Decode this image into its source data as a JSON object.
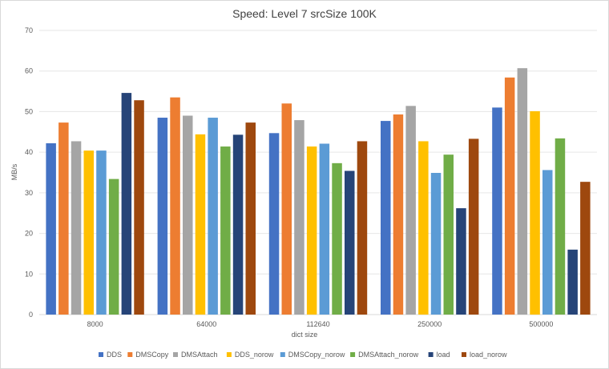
{
  "chart_data": {
    "type": "bar",
    "title": "Speed: Level 7 srcSize 100K",
    "xlabel": "dict size",
    "ylabel": "MB/s",
    "ylim": [
      0,
      70
    ],
    "yticks": [
      0,
      10,
      20,
      30,
      40,
      50,
      60,
      70
    ],
    "grid": true,
    "legend_position": "bottom",
    "categories": [
      "8000",
      "64000",
      "112640",
      "250000",
      "500000"
    ],
    "series": [
      {
        "name": "DDS",
        "color": "#4472c4",
        "values": [
          42.2,
          48.5,
          44.7,
          47.7,
          51.0
        ]
      },
      {
        "name": "DMSCopy",
        "color": "#ed7d31",
        "values": [
          47.3,
          53.5,
          52.0,
          49.3,
          58.4
        ]
      },
      {
        "name": "DMSAttach",
        "color": "#a5a5a5",
        "values": [
          42.7,
          49.0,
          47.9,
          51.4,
          60.7
        ]
      },
      {
        "name": "DDS_norow",
        "color": "#ffc000",
        "values": [
          40.4,
          44.4,
          41.4,
          42.7,
          50.1
        ]
      },
      {
        "name": "DMSCopy_norow",
        "color": "#5b9bd5",
        "values": [
          40.4,
          48.5,
          42.1,
          34.9,
          35.6
        ]
      },
      {
        "name": "DMSAttach_norow",
        "color": "#70ad47",
        "values": [
          33.4,
          41.4,
          37.3,
          39.4,
          43.4
        ]
      },
      {
        "name": "load",
        "color": "#264478",
        "values": [
          54.6,
          44.3,
          35.4,
          26.2,
          16.0
        ]
      },
      {
        "name": "load_norow",
        "color": "#9e480e",
        "values": [
          52.8,
          47.3,
          42.7,
          43.3,
          32.7
        ]
      }
    ]
  }
}
